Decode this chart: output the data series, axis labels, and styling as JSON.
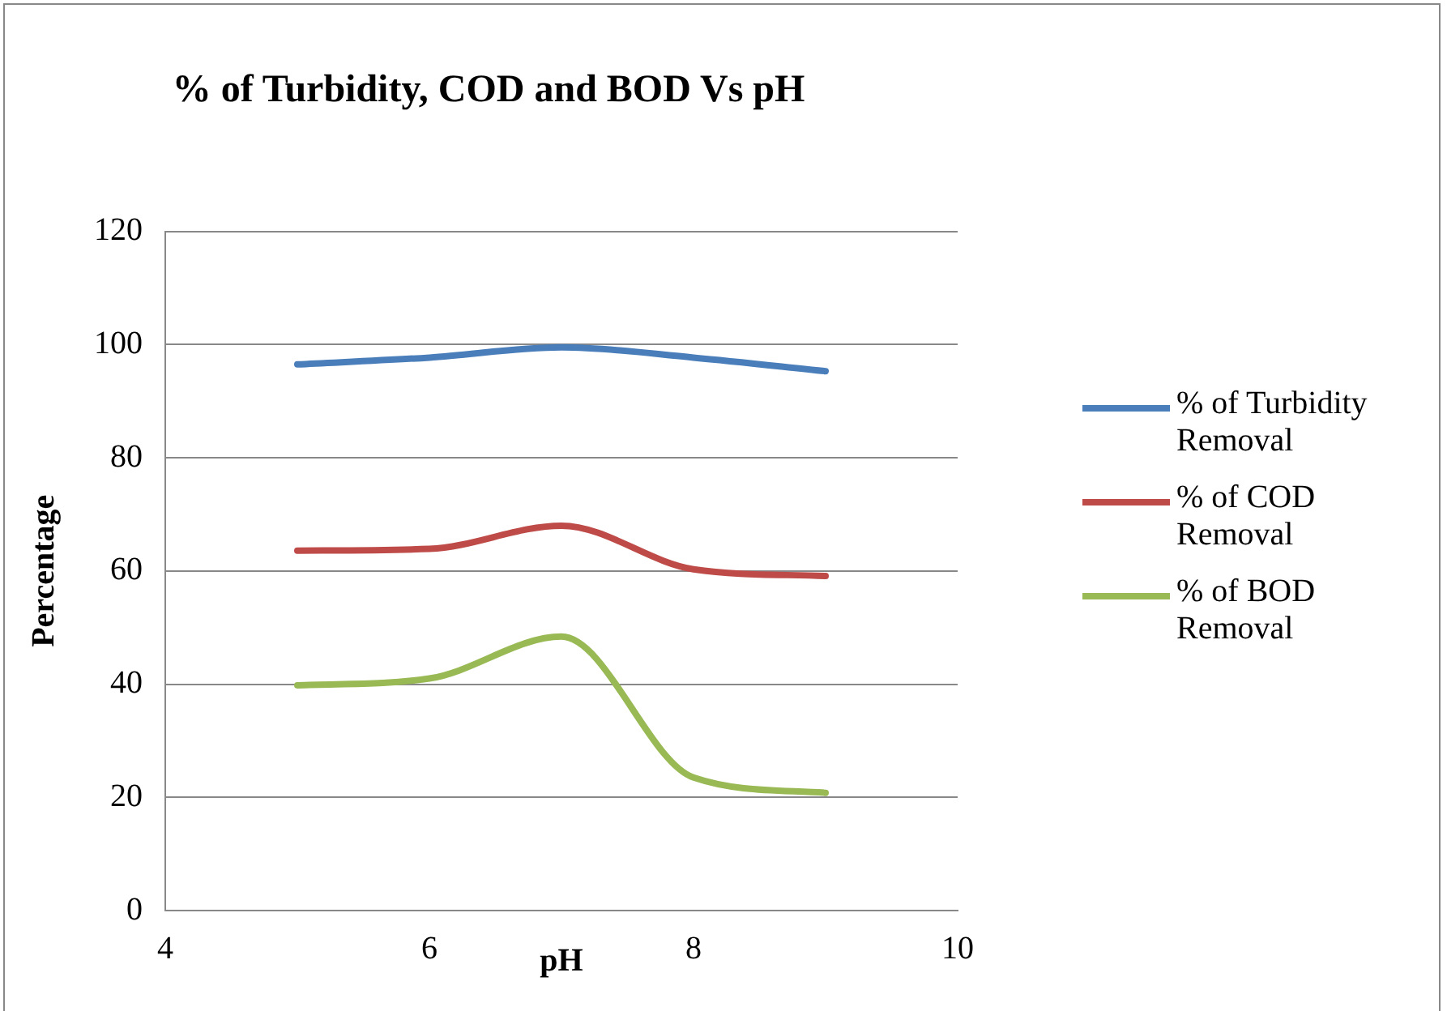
{
  "chart_data": {
    "type": "line",
    "title": "% of Turbidity, COD and BOD Vs pH",
    "xlabel": "pH",
    "ylabel": "Percentage",
    "x": [
      5,
      6,
      7,
      8,
      9
    ],
    "series": [
      {
        "name": "% of Turbidity Removal",
        "color": "#4a7ebb",
        "values": [
          96.5,
          97.7,
          99.5,
          97.7,
          95.3
        ]
      },
      {
        "name": "% of COD Removal",
        "color": "#be4b48",
        "values": [
          63.6,
          63.9,
          68,
          60.3,
          59.1
        ]
      },
      {
        "name": "% of BOD Removal",
        "color": "#98b954",
        "values": [
          39.8,
          41,
          48.4,
          23.5,
          20.8
        ]
      }
    ],
    "xlim": [
      4,
      10
    ],
    "xticks": [
      4,
      6,
      8,
      10
    ],
    "ylim": [
      0,
      120
    ],
    "yticks": [
      0,
      20,
      40,
      60,
      80,
      100,
      120
    ],
    "grid": "y",
    "legend": "right",
    "marker": "none",
    "line_style": "solid"
  }
}
